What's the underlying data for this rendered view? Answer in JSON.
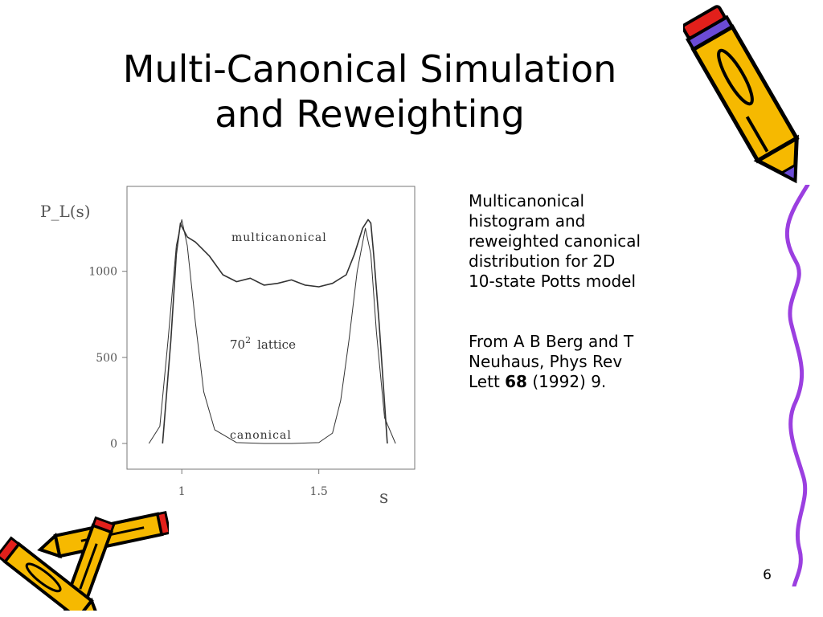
{
  "slide": {
    "title_line1": "Multi-Canonical Simulation",
    "title_line2": "and Reweighting",
    "caption_line1": "Multicanonical",
    "caption_line2": "histogram and",
    "caption_line3": "reweighted canonical",
    "caption_line4": "distribution for 2D",
    "caption_line5": "10-state Potts model",
    "ref_line1": "From A B Berg and T",
    "ref_line2": "Neuhaus, Phys Rev",
    "ref_prefix": "Lett ",
    "ref_volume": "68",
    "ref_suffix": " (1992) 9.",
    "page_number": "6"
  },
  "colors": {
    "pencil_body": "#f6b900",
    "pencil_outline": "#000000",
    "pencil_eraser": "#e2201b",
    "pencil_ferrule": "#6b4bd6",
    "squiggle": "#9b3fe0"
  },
  "chart_data": {
    "type": "line",
    "ylabel": "P_L(s)",
    "xlabel": "s",
    "x_ticks": [
      "1",
      "1.5"
    ],
    "y_ticks": [
      "1000",
      "500",
      "0"
    ],
    "ylim": [
      0,
      1400
    ],
    "annotations": {
      "multicanonical": "multicanonical",
      "lattice_base": "70",
      "lattice_exp": "2",
      "lattice_word": "lattice",
      "canonical": "canonical"
    },
    "series": [
      {
        "name": "multicanonical",
        "x": [
          0.93,
          0.96,
          0.98,
          0.995,
          1.0,
          1.02,
          1.05,
          1.1,
          1.15,
          1.2,
          1.25,
          1.3,
          1.35,
          1.4,
          1.45,
          1.5,
          1.55,
          1.6,
          1.63,
          1.66,
          1.68,
          1.69,
          1.7,
          1.72,
          1.75
        ],
        "y": [
          0,
          600,
          1100,
          1280,
          1260,
          1200,
          1170,
          1090,
          980,
          940,
          960,
          920,
          930,
          950,
          920,
          910,
          930,
          980,
          1100,
          1250,
          1300,
          1280,
          1100,
          700,
          0
        ]
      },
      {
        "name": "canonical",
        "x": [
          0.88,
          0.92,
          0.95,
          0.98,
          1.0,
          1.02,
          1.05,
          1.08,
          1.12,
          1.2,
          1.3,
          1.4,
          1.5,
          1.55,
          1.58,
          1.61,
          1.64,
          1.67,
          1.69,
          1.71,
          1.74,
          1.78
        ],
        "y": [
          0,
          100,
          600,
          1150,
          1300,
          1150,
          700,
          300,
          80,
          5,
          0,
          0,
          5,
          60,
          250,
          600,
          1000,
          1250,
          1100,
          650,
          150,
          0
        ]
      }
    ]
  }
}
